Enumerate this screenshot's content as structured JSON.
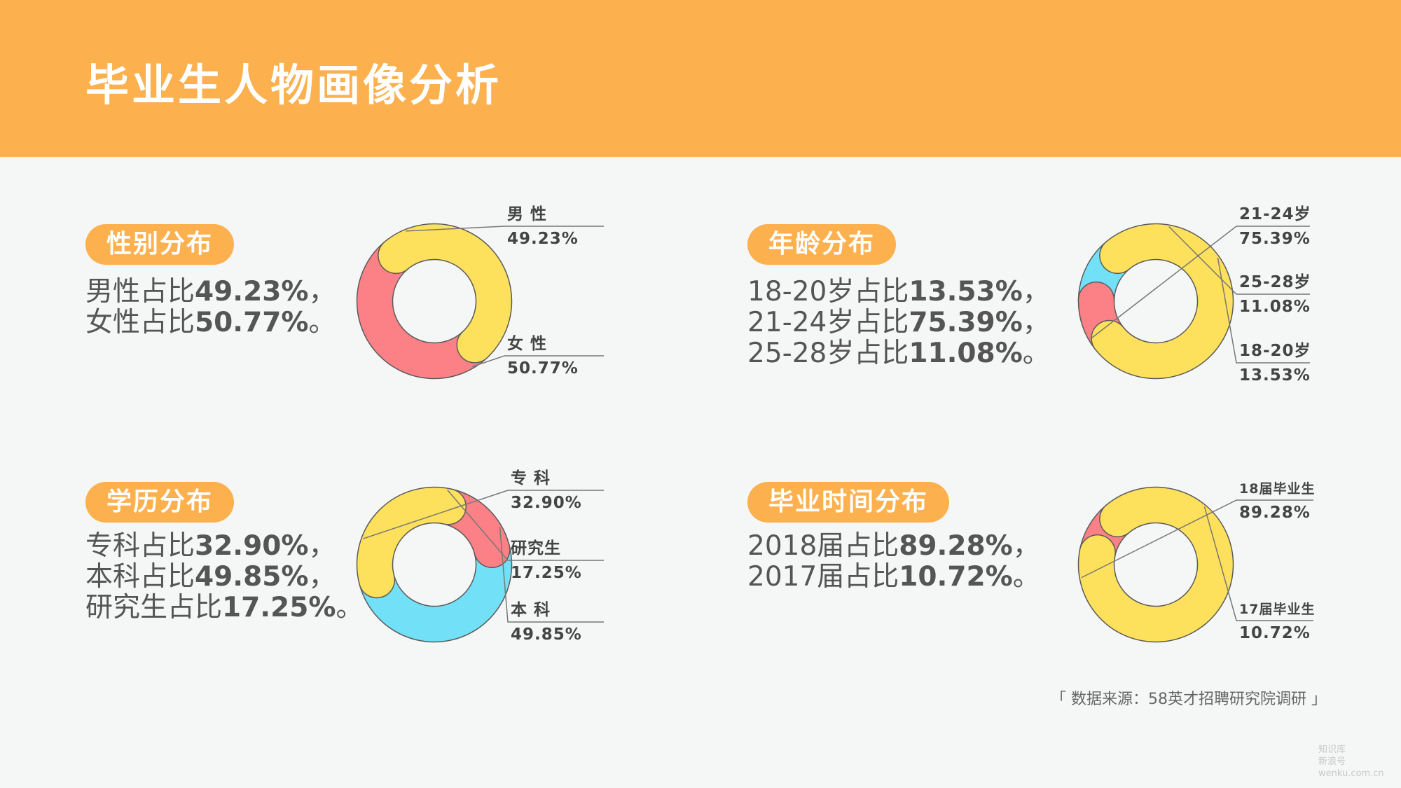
{
  "title": "毕业生人物画像分析",
  "source": "「 数据来源：58英才招聘研究院调研 」",
  "watermark": {
    "line1": "知识库",
    "line2": "新浪号 wenku.com.cn"
  },
  "colors": {
    "yellow": "#fde05b",
    "red": "#fb8186",
    "blue": "#72e0f6",
    "orange": "#fcb04e",
    "stroke": "#5a5a5a"
  },
  "chart_data": [
    {
      "type": "pie",
      "donut": true,
      "title": "性别分布",
      "desc": [
        [
          "男性占比",
          "49.23%",
          "，"
        ],
        [
          "女性占比",
          "50.77%",
          "。"
        ]
      ],
      "slices": [
        {
          "name": "男 性",
          "value": 49.23,
          "pct": "49.23%",
          "color": "#fde05b"
        },
        {
          "name": "女 性",
          "value": 50.77,
          "pct": "50.77%",
          "color": "#fb8186"
        }
      ]
    },
    {
      "type": "pie",
      "donut": true,
      "title": "年龄分布",
      "desc": [
        [
          "18-20岁占比",
          "13.53%",
          "，"
        ],
        [
          "21-24岁占比",
          "75.39%",
          "，"
        ],
        [
          "25-28岁占比",
          "11.08%",
          "。"
        ]
      ],
      "slices": [
        {
          "name": "21-24岁",
          "value": 75.39,
          "pct": "75.39%",
          "color": "#fde05b"
        },
        {
          "name": "25-28岁",
          "value": 11.08,
          "pct": "11.08%",
          "color": "#fb8186"
        },
        {
          "name": "18-20岁",
          "value": 13.53,
          "pct": "13.53%",
          "color": "#72e0f6"
        }
      ]
    },
    {
      "type": "pie",
      "donut": true,
      "title": "学历分布",
      "desc": [
        [
          "专科占比",
          "32.90%",
          "，"
        ],
        [
          "本科占比",
          "49.85%",
          "，"
        ],
        [
          "研究生占比",
          "17.25%",
          "。"
        ]
      ],
      "slices": [
        {
          "name": "专 科",
          "value": 32.9,
          "pct": "32.90%",
          "color": "#fde05b"
        },
        {
          "name": "研究生",
          "value": 17.25,
          "pct": "17.25%",
          "color": "#fb8186"
        },
        {
          "name": "本 科",
          "value": 49.85,
          "pct": "49.85%",
          "color": "#72e0f6"
        }
      ]
    },
    {
      "type": "pie",
      "donut": true,
      "title": "毕业时间分布",
      "desc": [
        [
          "2018届占比",
          "89.28%",
          "，"
        ],
        [
          "2017届占比",
          "10.72%",
          "。"
        ]
      ],
      "slices": [
        {
          "name": "18届毕业生",
          "value": 89.28,
          "pct": "89.28%",
          "color": "#fde05b"
        },
        {
          "name": "17届毕业生",
          "value": 10.72,
          "pct": "10.72%",
          "color": "#fb8186"
        }
      ]
    }
  ]
}
